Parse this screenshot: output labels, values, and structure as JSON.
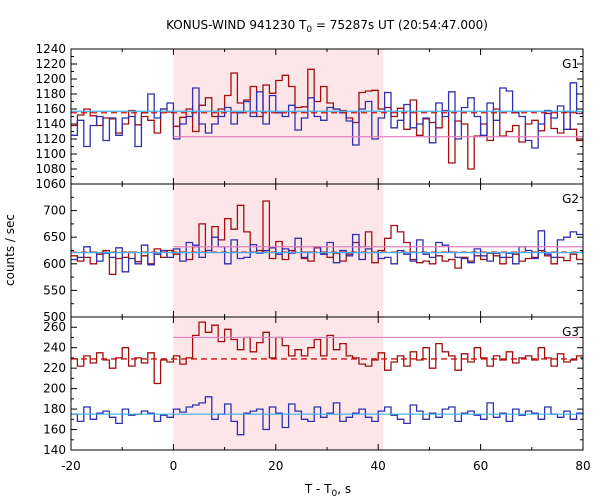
{
  "chart_data": {
    "type": "line",
    "title_prefix": "KONUS-WIND 941230 T",
    "title_sub": "0",
    "title_suffix": " = 75287s UT (20:54:47.000)",
    "xlabel_prefix": "T - T",
    "xlabel_sub": "0",
    "xlabel_suffix": ", s",
    "ylabel": "counts / sec",
    "xlim": [
      -20,
      80
    ],
    "xticks": [
      -20,
      0,
      20,
      40,
      60,
      80
    ],
    "highlight_interval": [
      0,
      41
    ],
    "colors": {
      "red_series": "#a01010",
      "blue_series": "#3030b0",
      "red_fit": "#cc1010",
      "pink_fit": "#e080c0",
      "blue_fit": "#40b0e8",
      "highlight": "#fde6e8"
    },
    "panels": [
      {
        "label": "G1",
        "ylim": [
          1060,
          1240
        ],
        "yticks": [
          1060,
          1080,
          1100,
          1120,
          1140,
          1160,
          1180,
          1200,
          1220,
          1240
        ],
        "background_level": 1155,
        "pink_level": 1123,
        "blue_level": 1157,
        "red_values": [
          1138,
          1152,
          1160,
          1151,
          1138,
          1148,
          1147,
          1128,
          1140,
          1158,
          1139,
          1150,
          1145,
          1128,
          1160,
          1156,
          1137,
          1149,
          1160,
          1130,
          1165,
          1175,
          1150,
          1160,
          1178,
          1208,
          1168,
          1172,
          1190,
          1150,
          1192,
          1181,
          1198,
          1205,
          1190,
          1162,
          1163,
          1213,
          1170,
          1190,
          1168,
          1160,
          1158,
          1148,
          1142,
          1182,
          1184,
          1185,
          1160,
          1162,
          1150,
          1161,
          1133,
          1172,
          1125,
          1147,
          1142,
          1135,
          1158,
          1088,
          1144,
          1140,
          1080,
          1124,
          1140,
          1118,
          1160,
          1124,
          1130,
          1138,
          1116,
          1140,
          1145,
          1131,
          1154,
          1134,
          1128,
          1156,
          1133,
          1118
        ],
        "blue_values": [
          1125,
          1145,
          1110,
          1138,
          1150,
          1118,
          1148,
          1125,
          1148,
          1150,
          1110,
          1155,
          1180,
          1148,
          1160,
          1168,
          1120,
          1140,
          1150,
          1188,
          1140,
          1128,
          1140,
          1150,
          1162,
          1140,
          1155,
          1170,
          1150,
          1183,
          1140,
          1178,
          1155,
          1150,
          1165,
          1132,
          1148,
          1175,
          1150,
          1145,
          1162,
          1160,
          1155,
          1144,
          1112,
          1160,
          1170,
          1120,
          1148,
          1182,
          1135,
          1145,
          1166,
          1135,
          1140,
          1148,
          1115,
          1168,
          1150,
          1183,
          1120,
          1162,
          1175,
          1150,
          1125,
          1168,
          1145,
          1188,
          1184,
          1155,
          1150,
          1118,
          1108,
          1140,
          1158,
          1148,
          1164,
          1133,
          1195,
          1154
        ]
      },
      {
        "label": "G2",
        "ylim": [
          500,
          750
        ],
        "yticks": [
          500,
          550,
          600,
          650,
          700
        ],
        "background_level": 622,
        "pink_level": 632,
        "blue_level": 621,
        "red_values": [
          615,
          605,
          612,
          600,
          618,
          625,
          580,
          610,
          612,
          622,
          604,
          615,
          600,
          628,
          612,
          625,
          618,
          622,
          608,
          632,
          675,
          625,
          670,
          645,
          685,
          665,
          710,
          660,
          622,
          625,
          718,
          610,
          642,
          608,
          625,
          632,
          610,
          605,
          630,
          620,
          612,
          620,
          605,
          618,
          640,
          632,
          660,
          602,
          625,
          648,
          672,
          660,
          640,
          608,
          602,
          605,
          600,
          615,
          605,
          608,
          592,
          612,
          605,
          615,
          608,
          620,
          615,
          600,
          612,
          618,
          605,
          610,
          612,
          625,
          615,
          600,
          612,
          606,
          618,
          608
        ],
        "blue_values": [
          608,
          612,
          632,
          622,
          605,
          620,
          612,
          630,
          585,
          610,
          600,
          635,
          598,
          618,
          625,
          612,
          628,
          605,
          640,
          635,
          612,
          625,
          650,
          632,
          600,
          645,
          610,
          612,
          636,
          620,
          625,
          630,
          618,
          628,
          620,
          648,
          612,
          622,
          632,
          618,
          640,
          602,
          625,
          615,
          655,
          608,
          628,
          622,
          610,
          612,
          600,
          625,
          618,
          605,
          645,
          618,
          612,
          640,
          635,
          622,
          612,
          610,
          602,
          628,
          615,
          605,
          620,
          612,
          620,
          600,
          632,
          625,
          610,
          662,
          618,
          612,
          645,
          650,
          660,
          655
        ]
      },
      {
        "label": "G3",
        "ylim": [
          140,
          270
        ],
        "yticks": [
          140,
          160,
          180,
          200,
          220,
          240,
          260
        ],
        "background_level": 229,
        "pink_level": 250,
        "blue_level": 175,
        "red_values": [
          229,
          222,
          232,
          225,
          235,
          228,
          220,
          230,
          240,
          222,
          230,
          225,
          235,
          205,
          228,
          226,
          232,
          224,
          230,
          252,
          265,
          255,
          262,
          246,
          258,
          248,
          238,
          250,
          236,
          245,
          255,
          230,
          250,
          242,
          232,
          238,
          232,
          240,
          248,
          232,
          252,
          238,
          244,
          232,
          230,
          224,
          222,
          228,
          235,
          218,
          226,
          232,
          222,
          236,
          228,
          240,
          220,
          244,
          236,
          232,
          218,
          234,
          226,
          240,
          230,
          222,
          232,
          228,
          236,
          225,
          230,
          232,
          228,
          240,
          230,
          222,
          234,
          226,
          228,
          232
        ],
        "blue_values": [
          175,
          168,
          182,
          170,
          176,
          178,
          172,
          166,
          180,
          174,
          175,
          178,
          176,
          168,
          174,
          172,
          180,
          177,
          182,
          184,
          186,
          192,
          170,
          175,
          185,
          168,
          155,
          176,
          178,
          180,
          160,
          182,
          176,
          162,
          185,
          178,
          170,
          168,
          182,
          172,
          176,
          186,
          168,
          172,
          176,
          180,
          172,
          168,
          178,
          182,
          174,
          170,
          166,
          184,
          178,
          170,
          176,
          172,
          180,
          182,
          168,
          176,
          178,
          174,
          170,
          186,
          172,
          176,
          168,
          180,
          174,
          178,
          176,
          170,
          182,
          175,
          172,
          178,
          170,
          176
        ]
      }
    ]
  }
}
